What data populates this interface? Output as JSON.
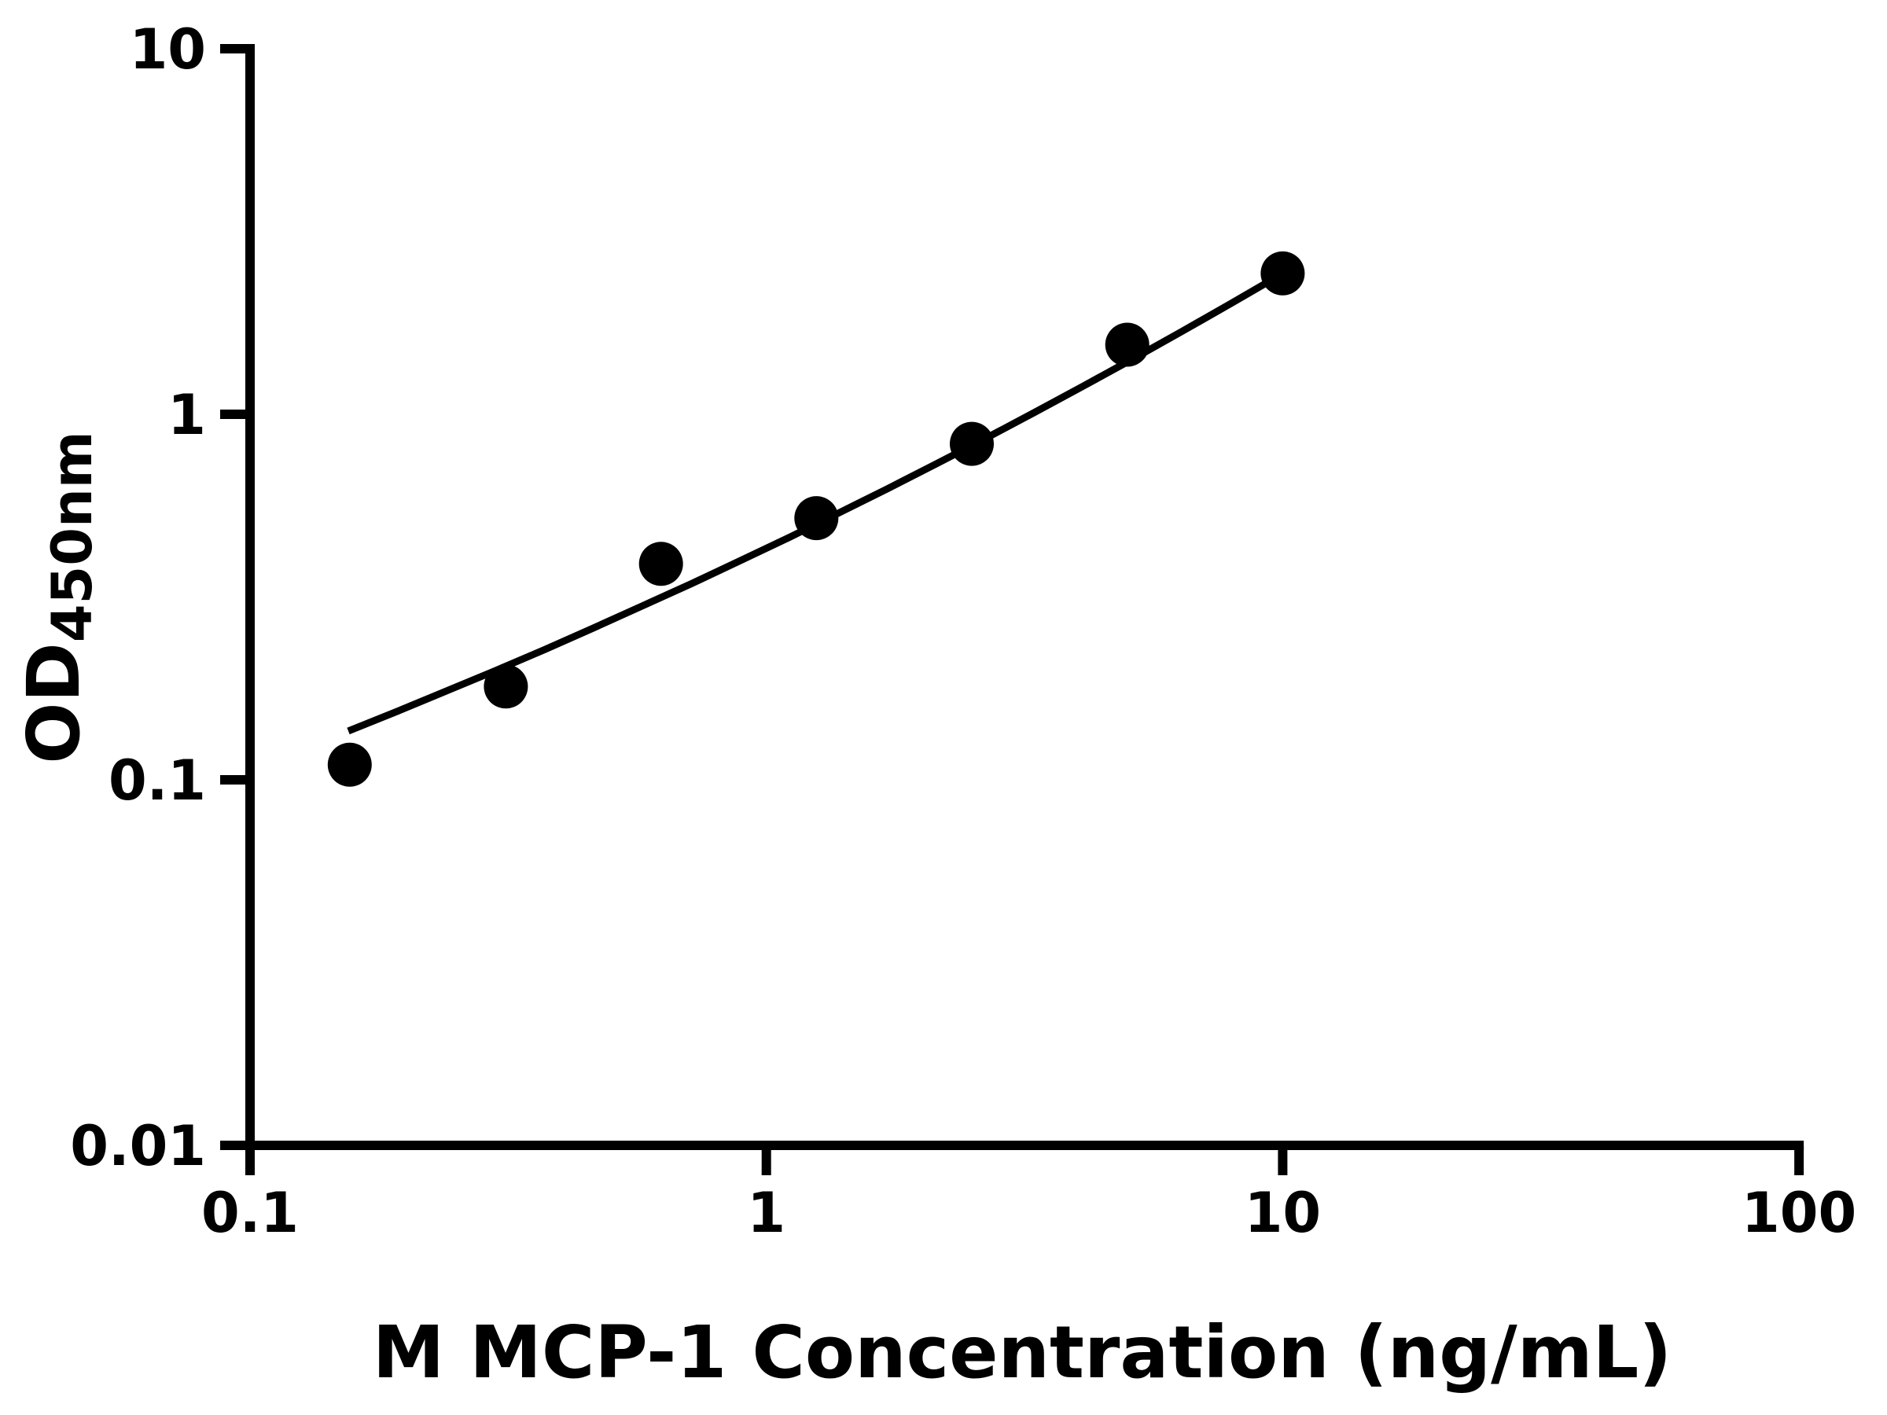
{
  "chart_data": {
    "type": "scatter",
    "title": "",
    "xlabel": "M MCP-1 Concentration (ng/mL)",
    "ylabel_main": "OD",
    "ylabel_sub": "450nm",
    "x_scale": "log",
    "y_scale": "log",
    "xlim": [
      0.1,
      100
    ],
    "ylim": [
      0.01,
      10
    ],
    "grid": false,
    "legend_position": "none",
    "x_ticks": [
      {
        "value": 0.1,
        "label": "0.1"
      },
      {
        "value": 1,
        "label": "1"
      },
      {
        "value": 10,
        "label": "10"
      },
      {
        "value": 100,
        "label": "100"
      }
    ],
    "y_ticks": [
      {
        "value": 10,
        "label": "10"
      },
      {
        "value": 1,
        "label": "1"
      },
      {
        "value": 0.1,
        "label": "0.1"
      },
      {
        "value": 0.01,
        "label": "0.01"
      }
    ],
    "series": [
      {
        "name": "standard-data-points",
        "type": "scatter",
        "marker": "circle",
        "points": [
          [
            0.156,
            0.11
          ],
          [
            0.313,
            0.18
          ],
          [
            0.625,
            0.39
          ],
          [
            1.25,
            0.52
          ],
          [
            2.5,
            0.83
          ],
          [
            5,
            1.55
          ],
          [
            10,
            2.43
          ]
        ]
      },
      {
        "name": "fitted-standard-curve",
        "type": "line",
        "points": [
          [
            0.155,
            0.136
          ],
          [
            0.193,
            0.154
          ],
          [
            0.24,
            0.175
          ],
          [
            0.299,
            0.199
          ],
          [
            0.372,
            0.227
          ],
          [
            0.462,
            0.26
          ],
          [
            0.575,
            0.299
          ],
          [
            0.716,
            0.344
          ],
          [
            0.891,
            0.398
          ],
          [
            1.109,
            0.461
          ],
          [
            1.38,
            0.537
          ],
          [
            1.718,
            0.626
          ],
          [
            2.138,
            0.733
          ],
          [
            2.661,
            0.86
          ],
          [
            3.311,
            1.013
          ],
          [
            4.121,
            1.197
          ],
          [
            5.129,
            1.418
          ],
          [
            6.383,
            1.686
          ],
          [
            7.943,
            2.01
          ],
          [
            10.0,
            2.427
          ]
        ]
      }
    ],
    "colors": {
      "points": "#000000",
      "curve": "#000000",
      "axis": "#000000",
      "background": "#ffffff"
    }
  }
}
